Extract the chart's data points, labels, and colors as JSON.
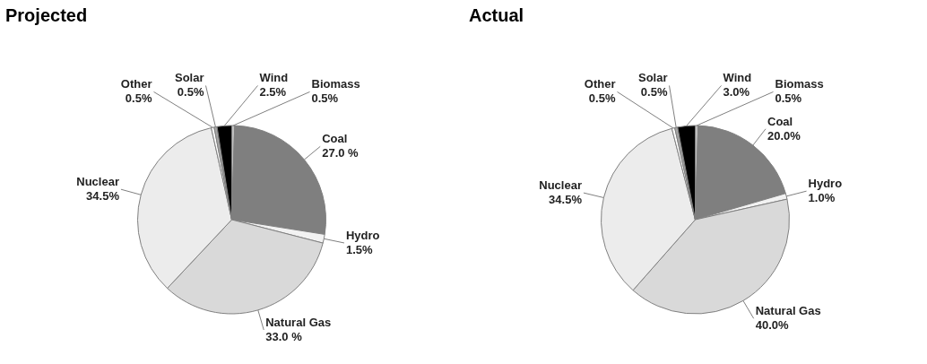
{
  "chart_data": [
    {
      "type": "pie",
      "title": "Projected",
      "categories": [
        "Biomass",
        "Coal",
        "Hydro",
        "Natural Gas",
        "Nuclear",
        "Other",
        "Solar",
        "Wind"
      ],
      "values": [
        0.5,
        27.0,
        1.5,
        33.0,
        34.5,
        0.5,
        0.5,
        2.5
      ],
      "value_labels": [
        "0.5%",
        "27.0 %",
        "1.5%",
        "33.0 %",
        "34.5%",
        "0.5%",
        "0.5%",
        "2.5%"
      ],
      "colors": [
        "#bfbfbf",
        "#7f7f7f",
        "#f2f2f2",
        "#d9d9d9",
        "#ececec",
        "#ffffff",
        "#a6a6a6",
        "#000000"
      ]
    },
    {
      "type": "pie",
      "title": "Actual",
      "categories": [
        "Biomass",
        "Coal",
        "Hydro",
        "Natural Gas",
        "Nuclear",
        "Other",
        "Solar",
        "Wind"
      ],
      "values": [
        0.5,
        20.0,
        1.0,
        40.0,
        34.5,
        0.5,
        0.5,
        3.0
      ],
      "value_labels": [
        "0.5%",
        "20.0%",
        "1.0%",
        "40.0%",
        "34.5%",
        "0.5%",
        "0.5%",
        "3.0%"
      ],
      "colors": [
        "#bfbfbf",
        "#7f7f7f",
        "#f2f2f2",
        "#d9d9d9",
        "#ececec",
        "#ffffff",
        "#a6a6a6",
        "#000000"
      ]
    }
  ]
}
